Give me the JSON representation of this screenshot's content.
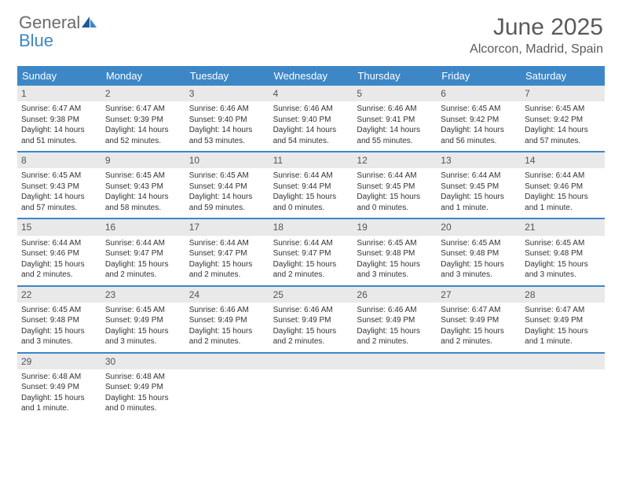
{
  "brand": {
    "part1": "General",
    "part2": "Blue"
  },
  "title": "June 2025",
  "location": "Alcorcon, Madrid, Spain",
  "colors": {
    "header_bg": "#3d87c7",
    "header_text": "#ffffff",
    "daynum_bg": "#e9e9e9",
    "text": "#333333",
    "rule": "#3d87c7",
    "brand_gray": "#6b6b6b",
    "brand_blue": "#3d87c7"
  },
  "weekdays": [
    "Sunday",
    "Monday",
    "Tuesday",
    "Wednesday",
    "Thursday",
    "Friday",
    "Saturday"
  ],
  "weeks": [
    [
      {
        "n": "1",
        "sr": "Sunrise: 6:47 AM",
        "ss": "Sunset: 9:38 PM",
        "d1": "Daylight: 14 hours",
        "d2": "and 51 minutes."
      },
      {
        "n": "2",
        "sr": "Sunrise: 6:47 AM",
        "ss": "Sunset: 9:39 PM",
        "d1": "Daylight: 14 hours",
        "d2": "and 52 minutes."
      },
      {
        "n": "3",
        "sr": "Sunrise: 6:46 AM",
        "ss": "Sunset: 9:40 PM",
        "d1": "Daylight: 14 hours",
        "d2": "and 53 minutes."
      },
      {
        "n": "4",
        "sr": "Sunrise: 6:46 AM",
        "ss": "Sunset: 9:40 PM",
        "d1": "Daylight: 14 hours",
        "d2": "and 54 minutes."
      },
      {
        "n": "5",
        "sr": "Sunrise: 6:46 AM",
        "ss": "Sunset: 9:41 PM",
        "d1": "Daylight: 14 hours",
        "d2": "and 55 minutes."
      },
      {
        "n": "6",
        "sr": "Sunrise: 6:45 AM",
        "ss": "Sunset: 9:42 PM",
        "d1": "Daylight: 14 hours",
        "d2": "and 56 minutes."
      },
      {
        "n": "7",
        "sr": "Sunrise: 6:45 AM",
        "ss": "Sunset: 9:42 PM",
        "d1": "Daylight: 14 hours",
        "d2": "and 57 minutes."
      }
    ],
    [
      {
        "n": "8",
        "sr": "Sunrise: 6:45 AM",
        "ss": "Sunset: 9:43 PM",
        "d1": "Daylight: 14 hours",
        "d2": "and 57 minutes."
      },
      {
        "n": "9",
        "sr": "Sunrise: 6:45 AM",
        "ss": "Sunset: 9:43 PM",
        "d1": "Daylight: 14 hours",
        "d2": "and 58 minutes."
      },
      {
        "n": "10",
        "sr": "Sunrise: 6:45 AM",
        "ss": "Sunset: 9:44 PM",
        "d1": "Daylight: 14 hours",
        "d2": "and 59 minutes."
      },
      {
        "n": "11",
        "sr": "Sunrise: 6:44 AM",
        "ss": "Sunset: 9:44 PM",
        "d1": "Daylight: 15 hours",
        "d2": "and 0 minutes."
      },
      {
        "n": "12",
        "sr": "Sunrise: 6:44 AM",
        "ss": "Sunset: 9:45 PM",
        "d1": "Daylight: 15 hours",
        "d2": "and 0 minutes."
      },
      {
        "n": "13",
        "sr": "Sunrise: 6:44 AM",
        "ss": "Sunset: 9:45 PM",
        "d1": "Daylight: 15 hours",
        "d2": "and 1 minute."
      },
      {
        "n": "14",
        "sr": "Sunrise: 6:44 AM",
        "ss": "Sunset: 9:46 PM",
        "d1": "Daylight: 15 hours",
        "d2": "and 1 minute."
      }
    ],
    [
      {
        "n": "15",
        "sr": "Sunrise: 6:44 AM",
        "ss": "Sunset: 9:46 PM",
        "d1": "Daylight: 15 hours",
        "d2": "and 2 minutes."
      },
      {
        "n": "16",
        "sr": "Sunrise: 6:44 AM",
        "ss": "Sunset: 9:47 PM",
        "d1": "Daylight: 15 hours",
        "d2": "and 2 minutes."
      },
      {
        "n": "17",
        "sr": "Sunrise: 6:44 AM",
        "ss": "Sunset: 9:47 PM",
        "d1": "Daylight: 15 hours",
        "d2": "and 2 minutes."
      },
      {
        "n": "18",
        "sr": "Sunrise: 6:44 AM",
        "ss": "Sunset: 9:47 PM",
        "d1": "Daylight: 15 hours",
        "d2": "and 2 minutes."
      },
      {
        "n": "19",
        "sr": "Sunrise: 6:45 AM",
        "ss": "Sunset: 9:48 PM",
        "d1": "Daylight: 15 hours",
        "d2": "and 3 minutes."
      },
      {
        "n": "20",
        "sr": "Sunrise: 6:45 AM",
        "ss": "Sunset: 9:48 PM",
        "d1": "Daylight: 15 hours",
        "d2": "and 3 minutes."
      },
      {
        "n": "21",
        "sr": "Sunrise: 6:45 AM",
        "ss": "Sunset: 9:48 PM",
        "d1": "Daylight: 15 hours",
        "d2": "and 3 minutes."
      }
    ],
    [
      {
        "n": "22",
        "sr": "Sunrise: 6:45 AM",
        "ss": "Sunset: 9:48 PM",
        "d1": "Daylight: 15 hours",
        "d2": "and 3 minutes."
      },
      {
        "n": "23",
        "sr": "Sunrise: 6:45 AM",
        "ss": "Sunset: 9:49 PM",
        "d1": "Daylight: 15 hours",
        "d2": "and 3 minutes."
      },
      {
        "n": "24",
        "sr": "Sunrise: 6:46 AM",
        "ss": "Sunset: 9:49 PM",
        "d1": "Daylight: 15 hours",
        "d2": "and 2 minutes."
      },
      {
        "n": "25",
        "sr": "Sunrise: 6:46 AM",
        "ss": "Sunset: 9:49 PM",
        "d1": "Daylight: 15 hours",
        "d2": "and 2 minutes."
      },
      {
        "n": "26",
        "sr": "Sunrise: 6:46 AM",
        "ss": "Sunset: 9:49 PM",
        "d1": "Daylight: 15 hours",
        "d2": "and 2 minutes."
      },
      {
        "n": "27",
        "sr": "Sunrise: 6:47 AM",
        "ss": "Sunset: 9:49 PM",
        "d1": "Daylight: 15 hours",
        "d2": "and 2 minutes."
      },
      {
        "n": "28",
        "sr": "Sunrise: 6:47 AM",
        "ss": "Sunset: 9:49 PM",
        "d1": "Daylight: 15 hours",
        "d2": "and 1 minute."
      }
    ],
    [
      {
        "n": "29",
        "sr": "Sunrise: 6:48 AM",
        "ss": "Sunset: 9:49 PM",
        "d1": "Daylight: 15 hours",
        "d2": "and 1 minute."
      },
      {
        "n": "30",
        "sr": "Sunrise: 6:48 AM",
        "ss": "Sunset: 9:49 PM",
        "d1": "Daylight: 15 hours",
        "d2": "and 0 minutes."
      },
      null,
      null,
      null,
      null,
      null
    ]
  ]
}
